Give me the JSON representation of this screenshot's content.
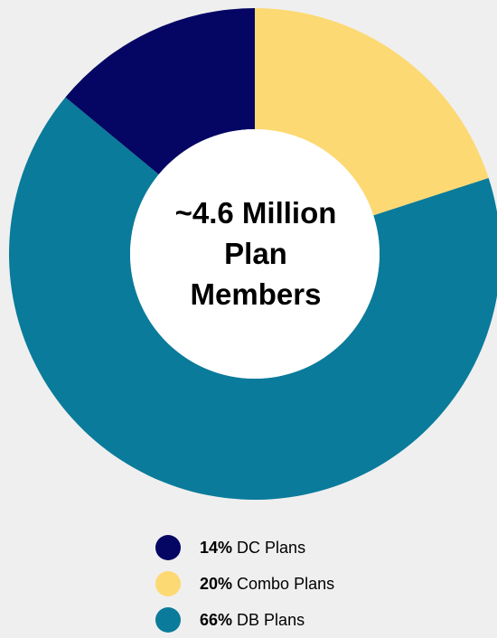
{
  "chart_data": {
    "type": "pie",
    "center_label": [
      "~4.6 Million",
      "Plan",
      "Members"
    ],
    "slices": [
      {
        "label": "DC Plans",
        "value": 14,
        "value_label": "14%",
        "color": "#050664"
      },
      {
        "label": "Combo Plans",
        "value": 20,
        "value_label": "20%",
        "color": "#fdd973"
      },
      {
        "label": "DB Plans",
        "value": 66,
        "value_label": "66%",
        "color": "#0a7b9a"
      }
    ],
    "start_slice": "Combo Plans",
    "direction": "clockwise-from-top",
    "legend_position": "bottom"
  }
}
